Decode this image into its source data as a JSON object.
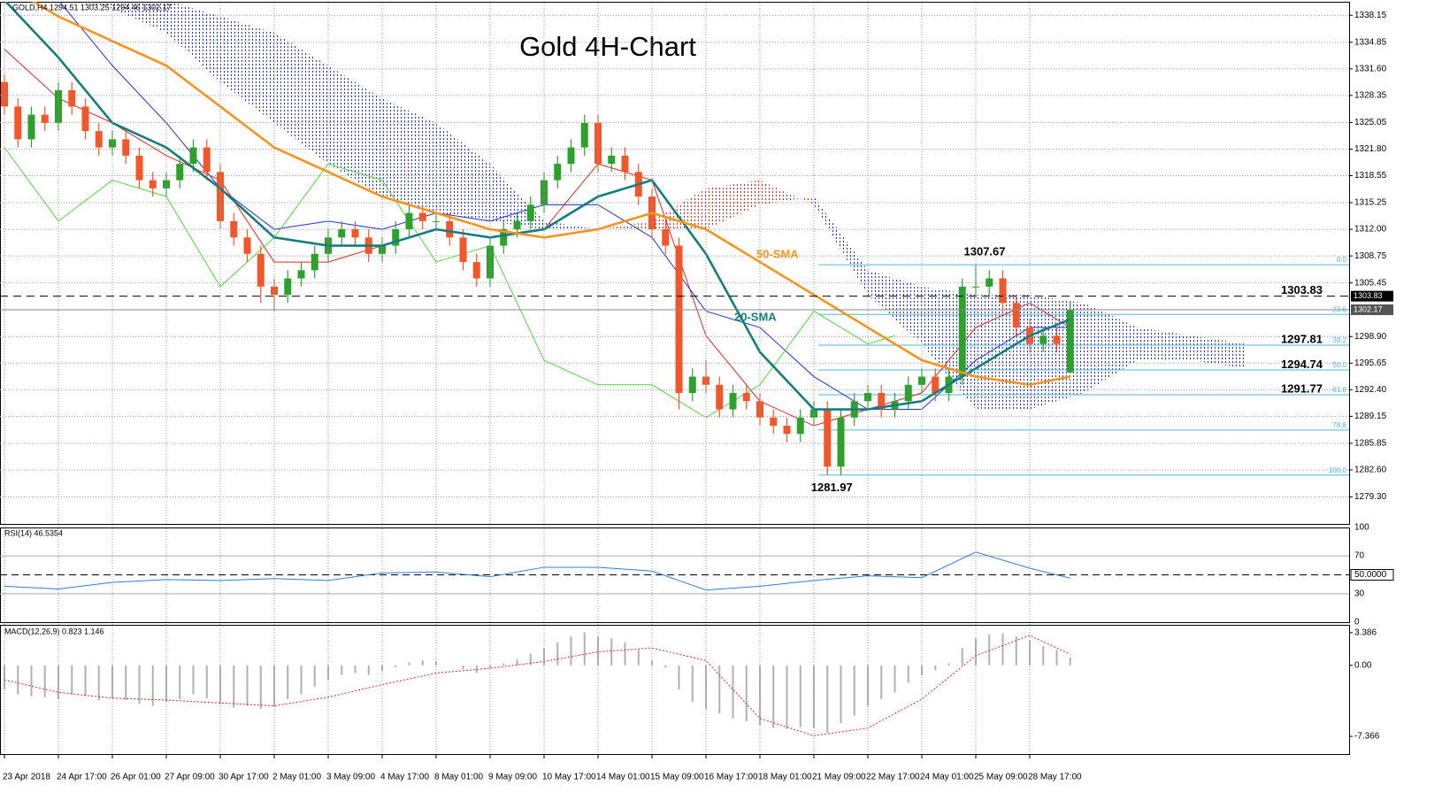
{
  "header": "GOLD,H4 1294.51 1303.25 1294.46 1302.17",
  "chart_data": [
    {
      "type": "candlestick",
      "title": "Gold 4H-Chart",
      "categories": [
        "23 Apr 2018",
        "24 Apr 17:00",
        "26 Apr 01:00",
        "27 Apr 09:00",
        "30 Apr 17:00",
        "2 May 01:00",
        "3 May 09:00",
        "4 May 17:00",
        "8 May 01:00",
        "9 May 09:00",
        "10 May 17:00",
        "14 May 01:00",
        "15 May 09:00",
        "16 May 17:00",
        "18 May 01:00",
        "21 May 09:00",
        "22 May 17:00",
        "24 May 01:00",
        "25 May 09:00",
        "28 May 17:00"
      ],
      "open": [
        1330,
        1327,
        1323,
        1326,
        1325,
        1329,
        1327,
        1324,
        1322,
        1323,
        1321,
        1318,
        1317,
        1318,
        1320,
        1322,
        1319,
        1313,
        1311,
        1309,
        1305,
        1304,
        1306,
        1307,
        1309,
        1311,
        1312,
        1311,
        1309,
        1310,
        1312,
        1314,
        1313,
        1313,
        1311,
        1308,
        1306,
        1310,
        1312,
        1313,
        1315,
        1318,
        1320,
        1322,
        1325,
        1320,
        1321,
        1319,
        1316,
        1312,
        1310,
        1292,
        1294,
        1293,
        1290,
        1292,
        1291,
        1289,
        1288,
        1287,
        1289,
        1290,
        1283,
        1289,
        1291,
        1292,
        1290,
        1291,
        1293,
        1294,
        1292,
        1294,
        1305,
        1305,
        1306,
        1303,
        1300,
        1298,
        1299,
        1294.51
      ],
      "high": [
        1331,
        1328,
        1327,
        1327,
        1330,
        1330,
        1328,
        1325,
        1324,
        1324,
        1322,
        1319,
        1319,
        1321,
        1323,
        1323,
        1320,
        1314,
        1312,
        1310,
        1306,
        1307,
        1308,
        1310,
        1312,
        1313,
        1313,
        1312,
        1311,
        1313,
        1315,
        1315,
        1314,
        1314,
        1312,
        1309,
        1311,
        1313,
        1314,
        1316,
        1319,
        1321,
        1323,
        1326,
        1326,
        1322,
        1322,
        1320,
        1317,
        1313,
        1311,
        1295,
        1296,
        1294,
        1293,
        1293,
        1292,
        1290,
        1289,
        1290,
        1291,
        1291,
        1290,
        1292,
        1293,
        1293,
        1292,
        1294,
        1295,
        1295,
        1295,
        1306,
        1307.67,
        1307,
        1307,
        1304,
        1301,
        1300,
        1300,
        1303.25
      ],
      "low": [
        1326,
        1322,
        1322,
        1324,
        1324,
        1326,
        1323,
        1321,
        1321,
        1320,
        1317,
        1316,
        1316,
        1317,
        1319,
        1318,
        1312,
        1310,
        1308,
        1303,
        1302,
        1303,
        1305,
        1306,
        1308,
        1310,
        1310,
        1308,
        1308,
        1309,
        1311,
        1312,
        1312,
        1310,
        1307,
        1305,
        1305,
        1309,
        1311,
        1312,
        1314,
        1317,
        1319,
        1321,
        1319,
        1319,
        1318,
        1315,
        1311,
        1309,
        1290,
        1291,
        1292,
        1289,
        1289,
        1290,
        1288,
        1287,
        1286,
        1286,
        1288,
        1281.97,
        1282,
        1288,
        1290,
        1289,
        1289,
        1290,
        1292,
        1291,
        1291,
        1293,
        1304,
        1304,
        1302,
        1299,
        1297,
        1297,
        1297,
        1294.46
      ],
      "close": [
        1327,
        1323,
        1326,
        1325,
        1329,
        1327,
        1324,
        1322,
        1323,
        1321,
        1318,
        1317,
        1318,
        1320,
        1322,
        1319,
        1313,
        1311,
        1309,
        1305,
        1304,
        1306,
        1307,
        1309,
        1311,
        1312,
        1311,
        1309,
        1310,
        1312,
        1314,
        1313,
        1313,
        1311,
        1308,
        1306,
        1310,
        1312,
        1313,
        1315,
        1318,
        1320,
        1322,
        1325,
        1320,
        1321,
        1319,
        1316,
        1312,
        1310,
        1292,
        1294,
        1293,
        1290,
        1292,
        1291,
        1289,
        1288,
        1287,
        1289,
        1290,
        1283,
        1289,
        1291,
        1292,
        1290,
        1291,
        1293,
        1294,
        1292,
        1294,
        1305,
        1305,
        1306,
        1303,
        1300,
        1298,
        1299,
        1298,
        1302.17
      ],
      "up_color": "#2ea02e",
      "down_color": "#f2572b",
      "ylim": [
        1276,
        1339.8
      ],
      "yticks": [
        1338.15,
        1334.85,
        {
          "value": 1331.6,
          "label": "1331.60"
        },
        1328.35,
        1325.05,
        {
          "value": 1321.8,
          "label": "1321.80"
        },
        1318.55,
        1315.25,
        {
          "value": 1312,
          "label": "1312.00"
        },
        1308.75,
        1305.45,
        {
          "value": 1298.9,
          "label": "1298.90"
        },
        1295.65,
        {
          "value": 1292.4,
          "label": "1292.40"
        },
        1289.15,
        1285.85,
        {
          "value": 1282.6,
          "label": "1282.60"
        },
        {
          "value": 1279.3,
          "label": "1279.30"
        }
      ],
      "grid": true,
      "series": [
        {
          "name": "20-SMA",
          "color": "#167d7f",
          "x": [
            0,
            4,
            8,
            12,
            16,
            20,
            24,
            28,
            32,
            36,
            40,
            44,
            48,
            52,
            56,
            60,
            64,
            68,
            72,
            76,
            79
          ],
          "values": [
            1340,
            1333,
            1325,
            1322,
            1317,
            1311,
            1310,
            1310,
            1312,
            1311,
            1312,
            1316,
            1318,
            1309,
            1297,
            1290,
            1290,
            1291,
            1295,
            1299,
            1301
          ]
        },
        {
          "name": "50-SMA",
          "color": "#f7931e",
          "x": [
            0,
            4,
            8,
            12,
            16,
            20,
            24,
            28,
            32,
            36,
            40,
            44,
            48,
            52,
            56,
            60,
            64,
            68,
            72,
            76,
            79
          ],
          "values": [
            1342,
            1338,
            1335,
            1332,
            1327,
            1322,
            1319,
            1316,
            1314,
            1312,
            1311,
            1312,
            1314,
            1312,
            1308,
            1304,
            1300,
            1296,
            1294,
            1293,
            1294
          ]
        }
      ],
      "lines": [
        {
          "color": "#e3261c",
          "x": [
            0,
            4,
            8,
            12,
            16,
            20,
            24,
            28,
            32,
            36,
            40,
            44,
            48,
            52,
            56,
            60,
            64,
            68,
            72,
            76,
            79
          ],
          "values": [
            1334,
            1328,
            1325,
            1321,
            1318,
            1308,
            1308,
            1310,
            1312,
            1311,
            1312,
            1320,
            1318,
            1299,
            1291,
            1288,
            1290,
            1292,
            1300,
            1303,
            1300
          ]
        },
        {
          "color": "#1d2fd8",
          "x": [
            0,
            4,
            8,
            12,
            16,
            20,
            24,
            28,
            32,
            36,
            40,
            44,
            48,
            52,
            56,
            60,
            64,
            68,
            72,
            76,
            79
          ],
          "values": [
            1340,
            1340,
            1332,
            1325,
            1317,
            1312,
            1313,
            1312,
            1314,
            1313,
            1315,
            1315,
            1311,
            1302,
            1300,
            1294,
            1290,
            1290,
            1296,
            1300,
            1300
          ]
        },
        {
          "color": "#4fd83a",
          "x": [
            0,
            4,
            8,
            12,
            16,
            20,
            24,
            28,
            32,
            36,
            40,
            44,
            48,
            52,
            56,
            60,
            64,
            66
          ],
          "values": [
            1322,
            1313,
            1318,
            1316,
            1305,
            1311,
            1320,
            1318,
            1308,
            1310,
            1296,
            1293,
            1293,
            1289,
            1293,
            1302,
            1298,
            1299
          ]
        }
      ],
      "cloud": {
        "x": [
          0,
          4,
          8,
          12,
          16,
          20,
          24,
          28,
          32,
          36,
          40,
          44,
          48,
          52,
          56,
          60,
          64,
          68,
          72,
          76,
          80,
          84,
          88,
          92
        ],
        "span_a": [
          1345,
          1345,
          1342,
          1340,
          1338,
          1336,
          1332,
          1328,
          1325,
          1320,
          1313,
          1312,
          1312,
          1312,
          1315,
          1316,
          1307,
          1305,
          1304,
          1304,
          1303,
          1300,
          1299,
          1298
        ],
        "span_b": [
          1340,
          1340,
          1339,
          1336,
          1330,
          1325,
          1320,
          1316,
          1314,
          1313,
          1312,
          1312,
          1313,
          1317,
          1318,
          1315,
          1304,
          1298,
          1290,
          1290,
          1292,
          1296,
          1296,
          1295
        ],
        "up_color": "#1d2fd8",
        "down_color": "#e3261c"
      },
      "fib": {
        "labels": [
          "0.0",
          "23.6",
          "38.2",
          "50.0",
          "61.8",
          "78.6",
          "100.0"
        ],
        "values": [
          1307.67,
          1301.6,
          1297.85,
          1294.82,
          1291.79,
          1287.47,
          1281.97
        ],
        "color": "#4fb8e0"
      },
      "levels": [
        1303.83,
        1297.81,
        1294.74,
        1291.77
      ]
    },
    {
      "type": "line",
      "title": "RSI(14) 46.5354",
      "color": "#2b7fd6",
      "x": [
        0,
        4,
        8,
        12,
        16,
        20,
        24,
        28,
        32,
        36,
        40,
        44,
        48,
        52,
        56,
        60,
        64,
        68,
        72,
        76,
        79
      ],
      "values": [
        38,
        35,
        42,
        45,
        44,
        46,
        44,
        52,
        53,
        48,
        58,
        58,
        54,
        34,
        38,
        44,
        49,
        47,
        74,
        57,
        46.5354
      ],
      "ylim": [
        0,
        100
      ],
      "yticks": [
        100,
        70,
        {
          "value": 50,
          "label": "50.0000"
        },
        30,
        0
      ]
    },
    {
      "type": "macd",
      "title": "MACD(12,26,9) 0.823 1.146",
      "color": "#b0b0b0",
      "signal_color": "#e3261c",
      "histogram": [
        -2.5,
        -3,
        -3.2,
        -3.3,
        -3.5,
        -3.0,
        -3.2,
        -3.6,
        -3.4,
        -3.6,
        -4,
        -4.2,
        -3.8,
        -3.5,
        -3,
        -3.4,
        -4,
        -4.4,
        -4.2,
        -4.5,
        -4.3,
        -3.5,
        -3,
        -2.2,
        -1.5,
        -1,
        -0.8,
        -1,
        -0.6,
        -0.2,
        0.3,
        0.5,
        0.4,
        0,
        -0.4,
        -0.8,
        -0.3,
        0.2,
        0.6,
        1.2,
        1.8,
        2.4,
        3,
        3.4,
        3,
        2.8,
        2.4,
        1.6,
        0.5,
        -0.2,
        -2.5,
        -3.8,
        -4.5,
        -5,
        -5.5,
        -5.8,
        -6.2,
        -6.5,
        -6.6,
        -6.4,
        -6.5,
        -7,
        -6,
        -5.2,
        -4.2,
        -3.5,
        -2.8,
        -1.8,
        -1,
        -0.5,
        0.2,
        1.8,
        2.8,
        3.2,
        3.3,
        3,
        2.6,
        2,
        1.6,
        0.823
      ],
      "signal": {
        "x": [
          0,
          4,
          8,
          12,
          16,
          20,
          24,
          28,
          32,
          36,
          40,
          44,
          48,
          52,
          56,
          60,
          64,
          68,
          72,
          76,
          79
        ],
        "values": [
          -1.5,
          -2.8,
          -3.4,
          -3.6,
          -3.9,
          -4.2,
          -3.3,
          -2.0,
          -0.8,
          -0.3,
          0.4,
          1.4,
          1.8,
          0.5,
          -5.5,
          -7.3,
          -6.5,
          -3.5,
          1.0,
          3.1,
          1.146
        ]
      },
      "ylim": [
        -9.2,
        4.2
      ],
      "yticks": [
        3.386,
        {
          "value": 0,
          "label": "0.00"
        },
        -7.366
      ]
    }
  ]
}
